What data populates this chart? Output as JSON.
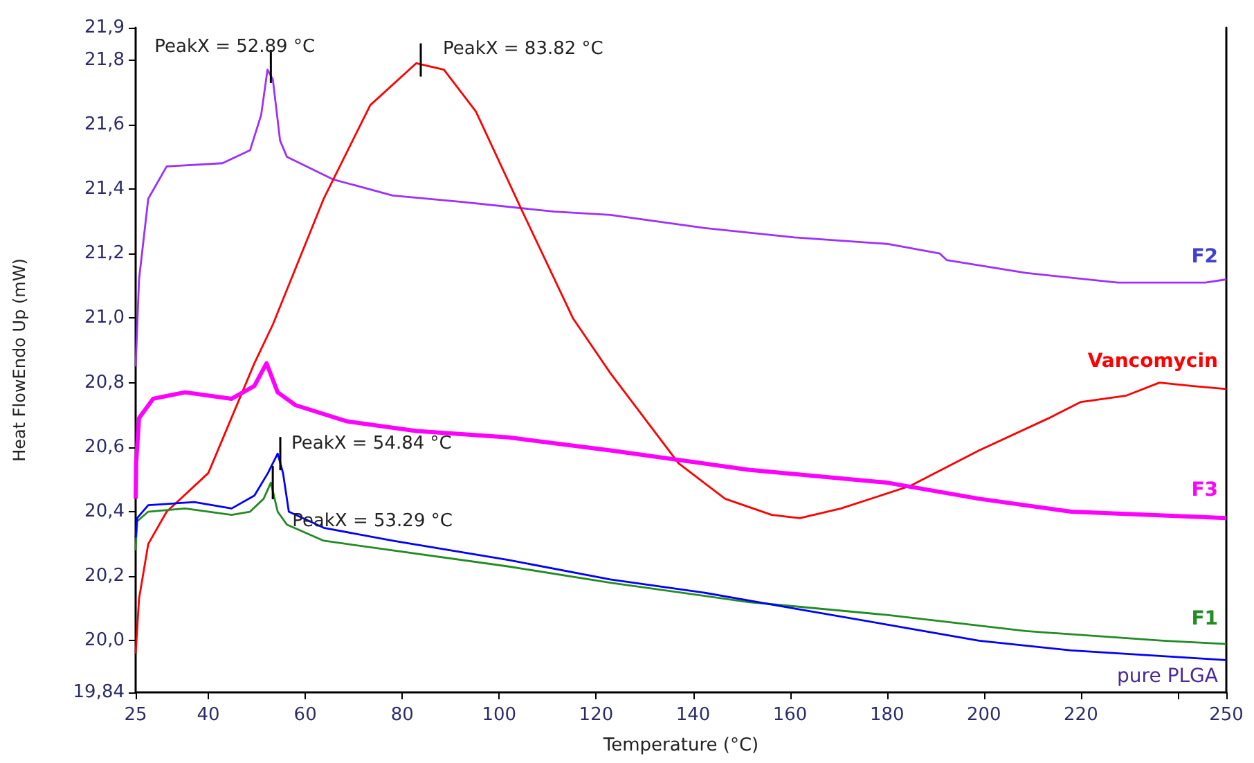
{
  "chart_data": {
    "type": "line",
    "xlabel": "Temperature (°C)",
    "ylabel": "Heat FlowEndo Up (mW)",
    "xlim": [
      25,
      250
    ],
    "xticks": [
      25,
      40,
      60,
      80,
      100,
      120,
      140,
      160,
      180,
      200,
      220,
      {
        "value": 240,
        "label": null
      },
      250
    ],
    "ylim": [
      19.84,
      21.9
    ],
    "yticks": [
      {
        "value": 19.84,
        "label": "19,84"
      },
      {
        "value": 20.0,
        "label": "20,0"
      },
      {
        "value": 20.2,
        "label": "20,2"
      },
      {
        "value": 20.4,
        "label": "20,4"
      },
      {
        "value": 20.6,
        "label": "20,6"
      },
      {
        "value": 20.8,
        "label": "20,8"
      },
      {
        "value": 21.0,
        "label": "21,0"
      },
      {
        "value": 21.2,
        "label": "21,2"
      },
      {
        "value": 21.4,
        "label": "21,4"
      },
      {
        "value": 21.6,
        "label": "21,6"
      },
      {
        "value": 21.8,
        "label": "21,8"
      },
      {
        "value": 21.9,
        "label": "21,9"
      }
    ],
    "grid": false,
    "legend": false,
    "marker": "none",
    "line_style": "solid",
    "series": [
      {
        "name": "F2",
        "color": "#9b30ff",
        "x": [
          25,
          25.7,
          27.6,
          31.4,
          42.9,
          48.6,
          50.9,
          52.2,
          53.3,
          54.8,
          56.2,
          65.7,
          78,
          92.3,
          111.4,
          122.9,
          141.9,
          160.9,
          180,
          190.9,
          192.3,
          208.6,
          227.6,
          245.7,
          250
        ],
        "values": [
          20.85,
          21.12,
          21.37,
          21.47,
          21.48,
          21.52,
          21.63,
          21.77,
          21.74,
          21.55,
          21.5,
          21.43,
          21.38,
          21.36,
          21.33,
          21.32,
          21.28,
          21.25,
          21.23,
          21.2,
          21.18,
          21.14,
          21.11,
          21.11,
          21.12
        ]
      },
      {
        "name": "Vancomycin",
        "color": "#ff0000",
        "x": [
          25,
          25.7,
          27.6,
          31.4,
          40,
          49.5,
          53.3,
          63.8,
          73.4,
          82.9,
          88.6,
          95.2,
          104.8,
          115.2,
          122.9,
          137,
          146.6,
          156.2,
          162,
          170.5,
          184.8,
          199,
          213.4,
          220,
          229.4,
          236.2,
          242.8,
          250
        ],
        "values": [
          19.96,
          20.13,
          20.3,
          20.4,
          20.52,
          20.86,
          20.98,
          21.37,
          21.66,
          21.79,
          21.77,
          21.64,
          21.33,
          21.0,
          20.83,
          20.55,
          20.44,
          20.39,
          20.38,
          20.41,
          20.48,
          20.59,
          20.69,
          20.74,
          20.76,
          20.8,
          20.79,
          20.78
        ]
      },
      {
        "name": "F3",
        "color": "#ff00ff",
        "x": [
          25,
          25.1,
          25.7,
          28.6,
          35.2,
          44.8,
          49.5,
          52,
          54.3,
          58,
          68.6,
          82.9,
          102,
          122.9,
          151.4,
          180,
          199,
          218,
          250
        ],
        "values": [
          20.44,
          20.55,
          20.69,
          20.75,
          20.77,
          20.75,
          20.79,
          20.86,
          20.77,
          20.73,
          20.68,
          20.65,
          20.63,
          20.59,
          20.53,
          20.49,
          20.44,
          20.4,
          20.38
        ]
      },
      {
        "name": "F1",
        "color": "#228b22",
        "x": [
          25,
          25.3,
          27.6,
          35.2,
          44.8,
          48.6,
          51.4,
          52.9,
          54.3,
          56.2,
          63.8,
          78,
          102,
          122.9,
          151.4,
          180,
          208.6,
          237,
          250
        ],
        "values": [
          20.28,
          20.37,
          20.4,
          20.41,
          20.39,
          20.4,
          20.44,
          20.49,
          20.4,
          20.36,
          20.31,
          20.28,
          20.23,
          20.18,
          20.12,
          20.08,
          20.03,
          20.0,
          19.99
        ]
      },
      {
        "name": "pure PLGA",
        "color": "#0000ff",
        "x": [
          25,
          25.3,
          27.6,
          37.1,
          44.8,
          49.5,
          52.3,
          54.3,
          55.4,
          56.6,
          63.8,
          78,
          102,
          122.9,
          141.9,
          160.9,
          180,
          199,
          218,
          250
        ],
        "values": [
          20.32,
          20.38,
          20.42,
          20.43,
          20.41,
          20.45,
          20.52,
          20.58,
          20.52,
          20.4,
          20.35,
          20.31,
          20.25,
          20.19,
          20.15,
          20.1,
          20.05,
          20.0,
          19.97,
          19.94
        ]
      }
    ],
    "annotations": [
      {
        "text": "PeakX = 52.89 °C",
        "x": 52.89,
        "y": 21.78
      },
      {
        "text": "PeakX = 83.82 °C",
        "x": 83.82,
        "y": 21.8
      },
      {
        "text": "PeakX = 54.84 °C",
        "x": 54.84,
        "y": 20.58
      },
      {
        "text": "PeakX = 53.29 °C",
        "x": 53.29,
        "y": 20.49
      }
    ]
  }
}
